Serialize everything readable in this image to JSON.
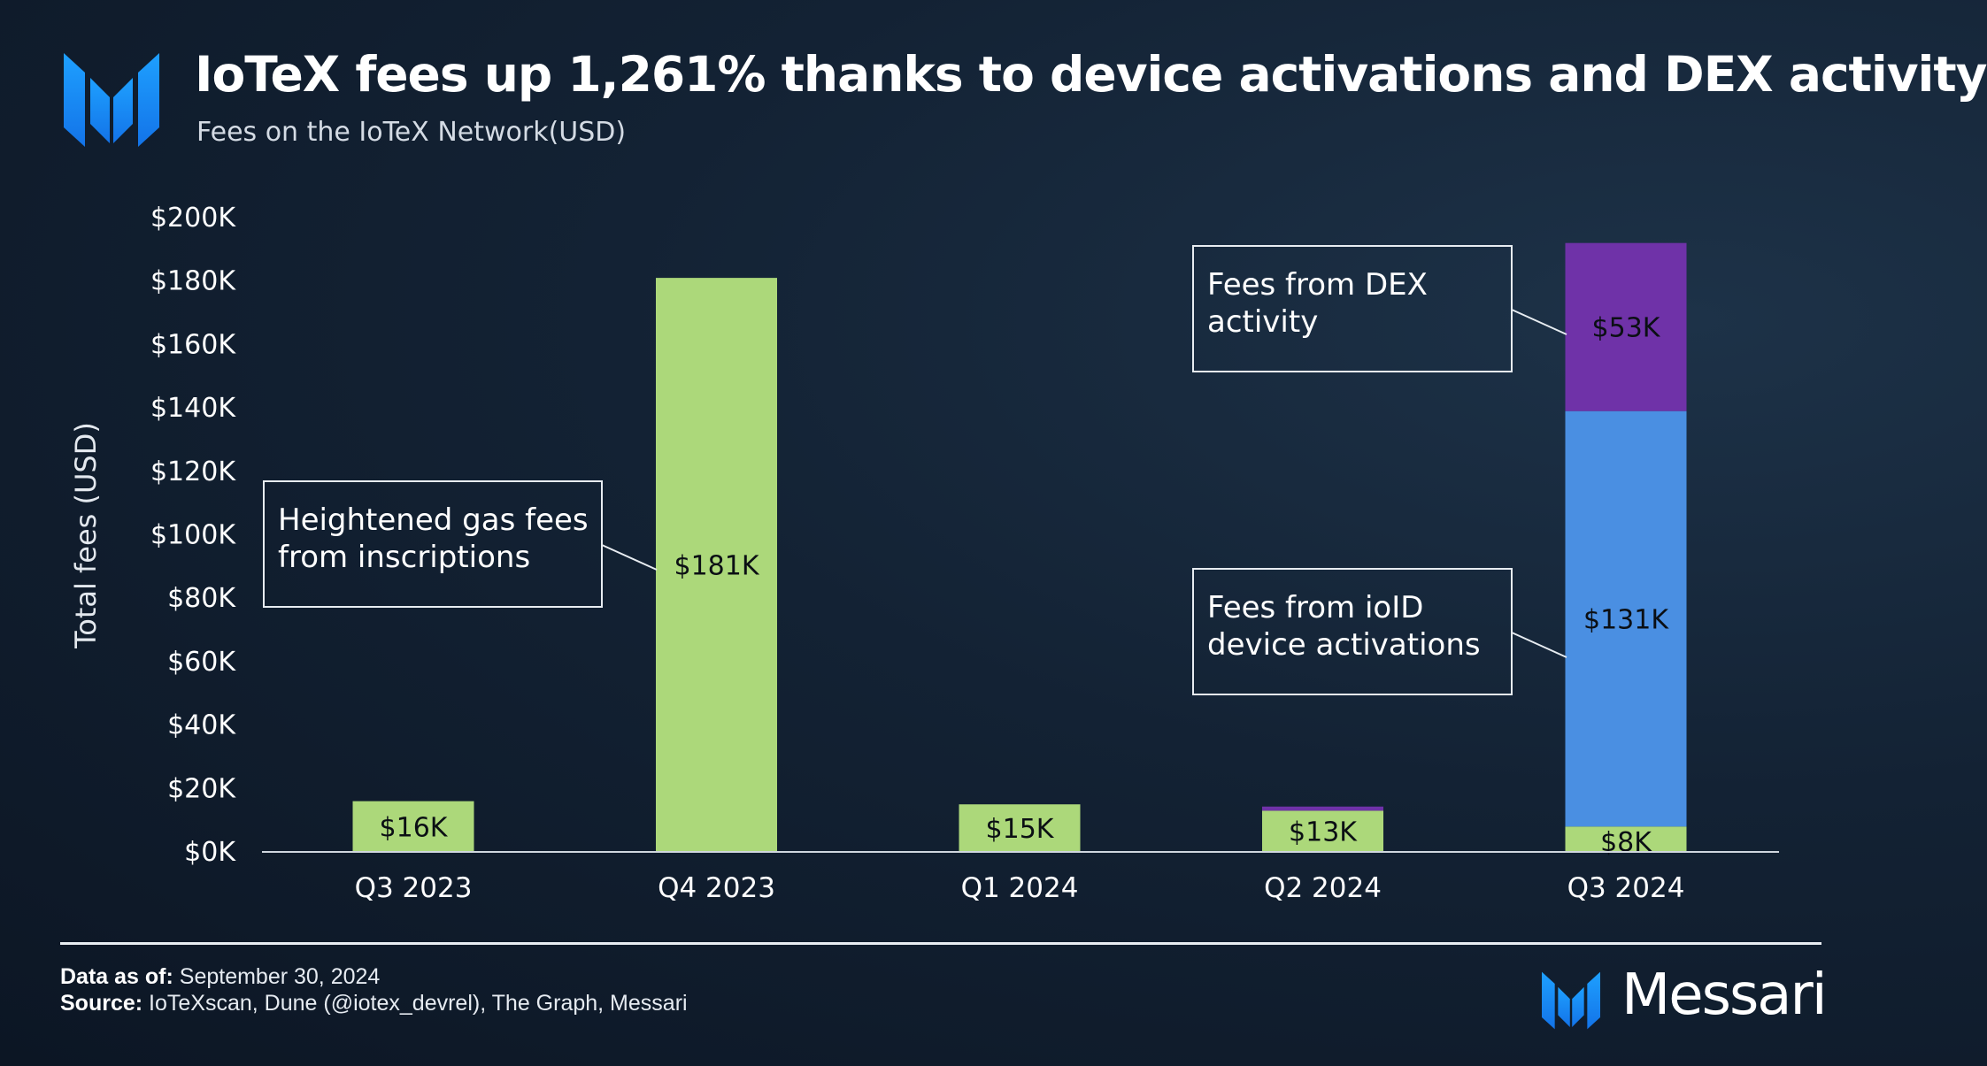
{
  "header": {
    "title": "IoTeX fees up 1,261% thanks to device activations and DEX activity",
    "subtitle": "Fees on the IoTeX Network(USD)",
    "logo_icon": "messari-m-icon"
  },
  "chart_data": {
    "type": "bar",
    "stacked": true,
    "title": "IoTeX fees up 1,261% thanks to device activations and DEX activity",
    "subtitle": "Fees on the IoTeX Network(USD)",
    "ylabel": "Total fees (USD)",
    "xlabel": "",
    "ylim": [
      0,
      200
    ],
    "y_unit": "K USD",
    "y_ticks": [
      "$0K",
      "$20K",
      "$40K",
      "$60K",
      "$80K",
      "$100K",
      "$120K",
      "$140K",
      "$160K",
      "$180K",
      "$200K"
    ],
    "categories": [
      "Q3 2023",
      "Q4 2023",
      "Q1 2024",
      "Q2 2024",
      "Q3 2024"
    ],
    "grid": false,
    "series": [
      {
        "name": "Fees",
        "color": "#acd87a",
        "values": [
          16,
          181,
          15,
          13,
          8
        ],
        "labels": [
          "$16K",
          "$181K",
          "$15K",
          "$13K",
          "$8K"
        ]
      },
      {
        "name": "Fees from ioID device activations",
        "color": "#4a8fe2",
        "values": [
          0,
          0,
          0,
          0,
          131
        ],
        "labels": [
          "",
          "",
          "",
          "",
          "$131K"
        ]
      },
      {
        "name": "Fees from DEX activity",
        "color": "#6f32a8",
        "values": [
          0,
          0,
          0,
          1.3,
          53
        ],
        "labels": [
          "",
          "",
          "",
          "",
          "$53K"
        ]
      }
    ],
    "annotations": [
      {
        "text_lines": [
          "Heightened gas fees",
          "from inscriptions"
        ],
        "target": "Q4 2023"
      },
      {
        "text_lines": [
          "Fees from DEX",
          "activity"
        ],
        "target": "Q3 2024"
      },
      {
        "text_lines": [
          "Fees from ioID",
          "device activations"
        ],
        "target": "Q3 2024"
      }
    ]
  },
  "footer": {
    "data_as_of_label": "Data as of:",
    "data_as_of_value": "September 30, 2024",
    "source_label": "Source:",
    "source_value": "IoTeXscan, Dune (@iotex_devrel), The Graph, Messari",
    "brand": "Messari",
    "brand_icon": "messari-m-icon"
  }
}
